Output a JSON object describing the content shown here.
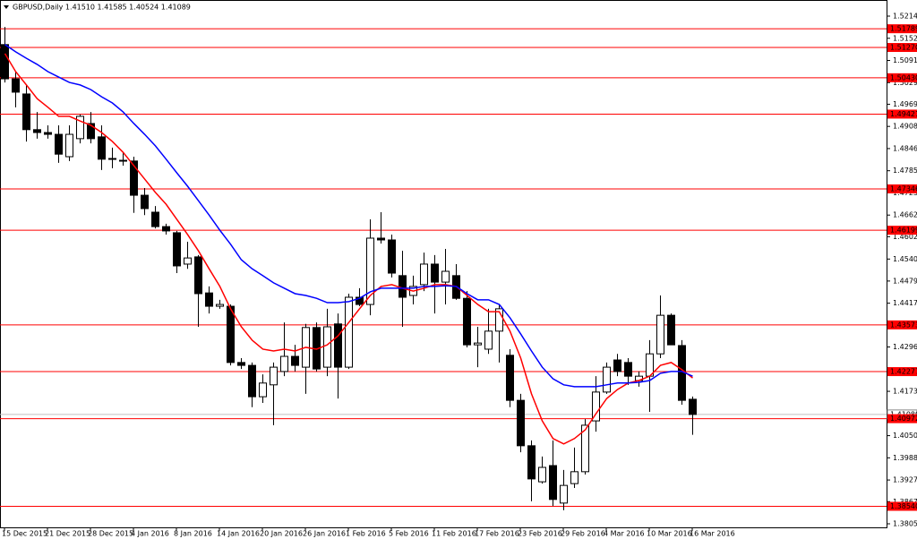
{
  "chart_data": {
    "type": "candlestick",
    "title": "GBPUSD,Daily  1.41510 1.41585 1.40524 1.41089",
    "categories": [
      "15 Dec 2015",
      null,
      null,
      null,
      "21 Dec 2015",
      null,
      null,
      null,
      "28 Dec 2015",
      null,
      null,
      null,
      "4 Jan 2016",
      null,
      null,
      null,
      "8 Jan 2016",
      null,
      null,
      null,
      "14 Jan 2016",
      null,
      null,
      null,
      "20 Jan 2016",
      null,
      null,
      null,
      "26 Jan 2016",
      null,
      null,
      null,
      "1 Feb 2016",
      null,
      null,
      null,
      "5 Feb 2016",
      null,
      null,
      null,
      "11 Feb 2016",
      null,
      null,
      null,
      "17 Feb 2016",
      null,
      null,
      null,
      "23 Feb 2016",
      null,
      null,
      null,
      "29 Feb 2016",
      null,
      null,
      null,
      "4 Mar 2016",
      null,
      null,
      null,
      "10 Mar 2016",
      null,
      null,
      null,
      "16 Mar 2016"
    ],
    "open": [
      1.5135,
      1.504,
      1.4998,
      1.4899,
      1.4891,
      1.4886,
      1.4824,
      1.4874,
      1.4916,
      1.4879,
      1.4817,
      1.4812,
      1.4812,
      1.4717,
      1.467,
      1.463,
      1.4613,
      1.4526,
      1.4546,
      1.4446,
      1.4409,
      1.4409,
      1.4253,
      1.4245,
      1.4158,
      1.4191,
      1.4228,
      1.427,
      1.424,
      1.435,
      1.424,
      1.436,
      1.424,
      1.4434,
      1.4414,
      1.4598,
      1.4593,
      1.4494,
      1.4439,
      1.4469,
      1.4526,
      1.4476,
      1.4494,
      1.4431,
      1.4302,
      1.429,
      1.434,
      1.4273,
      1.4148,
      1.4022,
      1.3922,
      1.3967,
      1.3863,
      1.3917,
      1.395,
      1.4091,
      1.4171,
      1.426,
      1.4253,
      1.4203,
      1.4215,
      1.4277,
      1.4384,
      1.43,
      1.4151
    ],
    "high": [
      1.5184,
      1.506,
      1.5023,
      1.4948,
      1.4911,
      1.4911,
      1.4911,
      1.4941,
      1.4948,
      1.4911,
      1.4849,
      1.4836,
      1.4824,
      1.4737,
      1.4687,
      1.4638,
      1.4618,
      1.4588,
      1.4551,
      1.4464,
      1.4427,
      1.4414,
      1.4265,
      1.4253,
      1.422,
      1.4253,
      1.4364,
      1.4302,
      1.436,
      1.4364,
      1.4402,
      1.4389,
      1.4444,
      1.4459,
      1.465,
      1.467,
      1.4608,
      1.4563,
      1.4494,
      1.4558,
      1.4551,
      1.4568,
      1.4526,
      1.4451,
      1.4352,
      1.4402,
      1.4414,
      1.429,
      1.4166,
      1.4037,
      1.3992,
      1.4037,
      1.3955,
      1.4017,
      1.4096,
      1.4215,
      1.4253,
      1.4277,
      1.4265,
      1.4228,
      1.4315,
      1.4439,
      1.4389,
      1.4315,
      1.41585
    ],
    "low": [
      1.503,
      1.4961,
      1.4866,
      1.4874,
      1.4874,
      1.4807,
      1.4812,
      1.4861,
      1.4861,
      1.4787,
      1.4792,
      1.4799,
      1.4668,
      1.4662,
      1.4625,
      1.4608,
      1.4501,
      1.4513,
      1.4352,
      1.4389,
      1.4402,
      1.4245,
      1.4235,
      1.4129,
      1.4141,
      1.4079,
      1.4215,
      1.4228,
      1.4166,
      1.4228,
      1.4215,
      1.4153,
      1.4235,
      1.4409,
      1.4384,
      1.4583,
      1.4489,
      1.4352,
      1.4414,
      1.4451,
      1.4389,
      1.4414,
      1.4427,
      1.4295,
      1.424,
      1.4277,
      1.4253,
      1.4129,
      1.4004,
      1.3868,
      1.3917,
      1.3855,
      1.3843,
      1.3905,
      1.3942,
      1.4061,
      1.4166,
      1.4215,
      1.4191,
      1.4186,
      1.4116,
      1.4265,
      1.4302,
      1.4136,
      1.40524
    ],
    "close": [
      1.504,
      1.5003,
      1.4899,
      1.4891,
      1.4886,
      1.4831,
      1.4886,
      1.4936,
      1.4874,
      1.4817,
      1.4819,
      1.4814,
      1.4717,
      1.468,
      1.463,
      1.4618,
      1.4521,
      1.4543,
      1.4444,
      1.4409,
      1.4414,
      1.4253,
      1.4245,
      1.4158,
      1.4196,
      1.424,
      1.427,
      1.4245,
      1.435,
      1.4235,
      1.4352,
      1.424,
      1.4434,
      1.4414,
      1.4598,
      1.4593,
      1.4501,
      1.4434,
      1.4464,
      1.4526,
      1.4476,
      1.4506,
      1.4431,
      1.4302,
      1.4307,
      1.434,
      1.4402,
      1.4148,
      1.4022,
      1.393,
      1.3962,
      1.3873,
      1.3912,
      1.395,
      1.4079,
      1.4171,
      1.424,
      1.4228,
      1.4215,
      1.4215,
      1.4277,
      1.4384,
      1.4302,
      1.4148,
      1.41089
    ],
    "lines": [
      {
        "color": "#ff0000",
        "values": [
          1.511,
          1.506,
          1.5023,
          1.4985,
          1.4961,
          1.4936,
          1.4936,
          1.4923,
          1.4911,
          1.4891,
          1.4866,
          1.4836,
          1.4799,
          1.4762,
          1.4725,
          1.4692,
          1.465,
          1.4608,
          1.4563,
          1.4513,
          1.4464,
          1.4402,
          1.4352,
          1.4315,
          1.429,
          1.4285,
          1.429,
          1.4285,
          1.4295,
          1.429,
          1.4302,
          1.4327,
          1.4364,
          1.4402,
          1.4439,
          1.4464,
          1.4469,
          1.4459,
          1.4451,
          1.4459,
          1.4469,
          1.4469,
          1.4464,
          1.4439,
          1.4414,
          1.4394,
          1.4394,
          1.434,
          1.4265,
          1.4166,
          1.4091,
          1.4042,
          1.4027,
          1.4042,
          1.4066,
          1.4111,
          1.4153,
          1.4178,
          1.4196,
          1.4203,
          1.4215,
          1.4245,
          1.4253,
          1.4233,
          1.421
        ]
      },
      {
        "color": "#0000ff",
        "values": [
          1.5135,
          1.5115,
          1.5097,
          1.508,
          1.506,
          1.5045,
          1.503,
          1.5023,
          1.501,
          1.499,
          1.4973,
          1.4948,
          1.4916,
          1.4886,
          1.4854,
          1.4817,
          1.4779,
          1.4742,
          1.4702,
          1.4662,
          1.462,
          1.4581,
          1.4538,
          1.4513,
          1.4494,
          1.4474,
          1.4459,
          1.4444,
          1.4439,
          1.4431,
          1.4419,
          1.4419,
          1.4422,
          1.4431,
          1.4449,
          1.4459,
          1.4459,
          1.4459,
          1.4459,
          1.4464,
          1.4464,
          1.4466,
          1.4464,
          1.4444,
          1.4427,
          1.4427,
          1.4414,
          1.4377,
          1.4332,
          1.4285,
          1.424,
          1.4208,
          1.4191,
          1.4186,
          1.4186,
          1.4186,
          1.4191,
          1.4196,
          1.4196,
          1.4198,
          1.4203,
          1.4223,
          1.4228,
          1.4228,
          1.4215
        ]
      }
    ],
    "ylim": [
      1.37931,
      1.52587
    ],
    "yticks": [
      {
        "value": 1.5214,
        "label": "1.52140"
      },
      {
        "value": 1.51525,
        "label": "1.51525"
      },
      {
        "value": 1.5091,
        "label": "1.50910"
      },
      {
        "value": 1.50295,
        "label": "1.50295"
      },
      {
        "value": 1.49695,
        "label": "1.49695"
      },
      {
        "value": 1.4908,
        "label": "1.49080"
      },
      {
        "value": 1.48465,
        "label": "1.48465"
      },
      {
        "value": 1.4785,
        "label": "1.47850"
      },
      {
        "value": 1.47235,
        "label": "1.47235"
      },
      {
        "value": 1.4662,
        "label": "1.46620"
      },
      {
        "value": 1.4602,
        "label": "1.46020"
      },
      {
        "value": 1.454,
        "label": "1.45400"
      },
      {
        "value": 1.4479,
        "label": "1.44790"
      },
      {
        "value": 1.44175,
        "label": "1.44175"
      },
      {
        "value": 1.4296,
        "label": "1.42960"
      },
      {
        "value": 1.4173,
        "label": "1.41730"
      },
      {
        "value": 1.405,
        "label": "1.40500"
      },
      {
        "value": 1.39885,
        "label": "1.39885"
      },
      {
        "value": 1.3927,
        "label": "1.39270"
      },
      {
        "value": 1.3867,
        "label": "1.38670"
      },
      {
        "value": 1.38055,
        "label": "1.38055"
      }
    ],
    "last_price": {
      "value": 1.41089,
      "label": "1.41089"
    },
    "level_color": "#ff0000",
    "levels": [
      {
        "value": 1.51789,
        "label": "1.51789"
      },
      {
        "value": 1.5127,
        "label": "1.51270"
      },
      {
        "value": 1.5043,
        "label": "1.50430"
      },
      {
        "value": 1.49421,
        "label": "1.49421"
      },
      {
        "value": 1.47346,
        "label": "1.47346"
      },
      {
        "value": 1.46199,
        "label": "1.46199"
      },
      {
        "value": 1.43573,
        "label": "1.43573"
      },
      {
        "value": 1.42277,
        "label": "1.42277"
      },
      {
        "value": 1.40972,
        "label": "1.40972"
      },
      {
        "value": 1.3854,
        "label": "1.38540"
      }
    ]
  }
}
